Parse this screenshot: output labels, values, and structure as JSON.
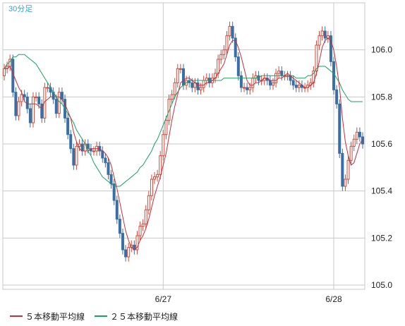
{
  "chart_data": {
    "type": "candlestick",
    "title": "30分足",
    "ylim": [
      105.0,
      106.2
    ],
    "yticks": [
      105.0,
      105.2,
      105.4,
      105.6,
      105.8,
      106.0
    ],
    "xticks": [
      {
        "label": "6/27",
        "index": 55
      },
      {
        "label": "6/28",
        "index": 114
      }
    ],
    "grid": true,
    "legend_position": "bottom-left",
    "colors": {
      "up": "#d04a3a",
      "down": "#3a6fa6",
      "ma5": "#c0303a",
      "ma25": "#18a060",
      "title": "#2ba7d6",
      "grid": "#c8c8c8",
      "axis_text": "#222222"
    },
    "close": [
      105.92,
      105.93,
      105.96,
      105.82,
      105.72,
      105.78,
      105.81,
      105.8,
      105.75,
      105.69,
      105.8,
      105.8,
      105.77,
      105.71,
      105.84,
      105.84,
      105.82,
      105.79,
      105.73,
      105.82,
      105.79,
      105.71,
      105.64,
      105.58,
      105.51,
      105.59,
      105.6,
      105.57,
      105.6,
      105.58,
      105.57,
      105.57,
      105.59,
      105.57,
      105.54,
      105.52,
      105.47,
      105.43,
      105.36,
      105.28,
      105.22,
      105.15,
      105.12,
      105.16,
      105.17,
      105.15,
      105.21,
      105.25,
      105.26,
      105.32,
      105.38,
      105.45,
      105.46,
      105.47,
      105.55,
      105.64,
      105.7,
      105.79,
      105.81,
      105.86,
      105.92,
      105.92,
      105.85,
      105.87,
      105.86,
      105.84,
      105.86,
      105.83,
      105.84,
      105.87,
      105.88,
      105.86,
      105.88,
      105.9,
      105.96,
      105.98,
      106.0,
      106.06,
      106.1,
      106.05,
      105.97,
      105.89,
      105.84,
      105.84,
      105.83,
      105.84,
      105.88,
      105.89,
      105.87,
      105.87,
      105.88,
      105.87,
      105.85,
      105.86,
      105.9,
      105.91,
      105.89,
      105.89,
      105.89,
      105.87,
      105.85,
      105.84,
      105.85,
      105.84,
      105.84,
      105.85,
      105.86,
      105.91,
      106.02,
      106.06,
      106.08,
      106.05,
      106.06,
      105.95,
      105.83,
      105.77,
      105.56,
      105.42,
      105.45,
      105.53,
      105.59,
      105.62,
      105.65,
      105.63,
      105.6
    ],
    "ma5": [
      105.92,
      105.92,
      105.93,
      105.9,
      105.87,
      105.84,
      105.82,
      105.78,
      105.77,
      105.77,
      105.77,
      105.77,
      105.76,
      105.75,
      105.78,
      105.79,
      105.8,
      105.8,
      105.8,
      105.8,
      105.79,
      105.77,
      105.74,
      105.71,
      105.65,
      105.61,
      105.58,
      105.57,
      105.57,
      105.57,
      105.58,
      105.58,
      105.58,
      105.58,
      105.57,
      105.56,
      105.54,
      105.51,
      105.46,
      105.41,
      105.35,
      105.29,
      105.23,
      105.19,
      105.16,
      105.15,
      105.16,
      105.19,
      105.21,
      105.24,
      105.28,
      105.33,
      105.38,
      105.42,
      105.46,
      105.51,
      105.56,
      105.63,
      105.7,
      105.76,
      105.81,
      105.86,
      105.87,
      105.88,
      105.88,
      105.87,
      105.86,
      105.85,
      105.85,
      105.85,
      105.86,
      105.86,
      105.87,
      105.88,
      105.9,
      105.92,
      105.94,
      105.98,
      106.02,
      106.04,
      106.04,
      106.01,
      105.97,
      105.92,
      105.87,
      105.85,
      105.85,
      105.86,
      105.86,
      105.87,
      105.88,
      105.88,
      105.87,
      105.87,
      105.87,
      105.88,
      105.88,
      105.89,
      105.9,
      105.89,
      105.88,
      105.87,
      105.86,
      105.85,
      105.84,
      105.84,
      105.85,
      105.86,
      105.9,
      105.95,
      106.01,
      106.04,
      106.05,
      106.04,
      106.0,
      105.93,
      105.84,
      105.71,
      105.61,
      105.55,
      105.51,
      105.52,
      105.56,
      105.6,
      105.62
    ],
    "ma25": [
      105.92,
      105.94,
      105.95,
      105.97,
      105.97,
      105.98,
      105.98,
      105.98,
      105.97,
      105.96,
      105.95,
      105.94,
      105.92,
      105.9,
      105.88,
      105.86,
      105.84,
      105.82,
      105.8,
      105.78,
      105.77,
      105.75,
      105.73,
      105.71,
      105.69,
      105.66,
      105.64,
      105.62,
      105.6,
      105.57,
      105.55,
      105.52,
      105.5,
      105.48,
      105.46,
      105.45,
      105.44,
      105.43,
      105.42,
      105.42,
      105.42,
      105.43,
      105.44,
      105.45,
      105.46,
      105.47,
      105.48,
      105.5,
      105.51,
      105.53,
      105.55,
      105.57,
      105.6,
      105.62,
      105.65,
      105.68,
      105.71,
      105.74,
      105.77,
      105.8,
      105.82,
      105.84,
      105.85,
      105.86,
      105.87,
      105.87,
      105.87,
      105.87,
      105.87,
      105.87,
      105.87,
      105.87,
      105.87,
      105.87,
      105.87,
      105.87,
      105.88,
      105.88,
      105.88,
      105.88,
      105.88,
      105.88,
      105.88,
      105.88,
      105.88,
      105.88,
      105.88,
      105.88,
      105.88,
      105.89,
      105.89,
      105.89,
      105.89,
      105.89,
      105.89,
      105.89,
      105.89,
      105.89,
      105.89,
      105.89,
      105.89,
      105.88,
      105.88,
      105.88,
      105.88,
      105.89,
      105.89,
      105.9,
      105.92,
      105.93,
      105.93,
      105.93,
      105.92,
      105.91,
      105.9,
      105.88,
      105.86,
      105.83,
      105.81,
      105.79,
      105.78,
      105.78,
      105.78,
      105.78,
      105.78
    ],
    "legend": [
      {
        "label": "５本移動平均線",
        "color": "#c0303a"
      },
      {
        "label": "２５本移動平均線",
        "color": "#18a060"
      }
    ]
  }
}
